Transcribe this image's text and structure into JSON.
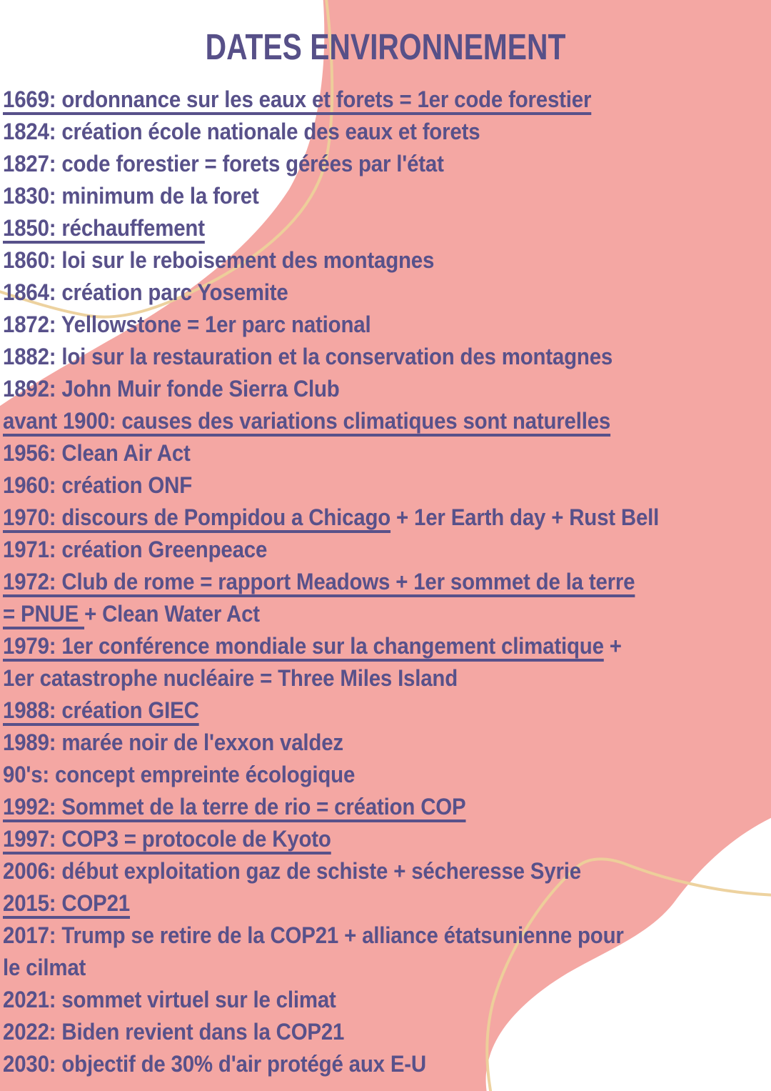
{
  "page": {
    "title": "DATES ENVIRONNEMENT"
  },
  "style": {
    "background_color": "#f4a7a3",
    "text_color": "#58518a",
    "title_color": "#575088",
    "accent_curve_color": "#ecd09a",
    "blob_color": "#ffffff"
  },
  "decor": {
    "top_left_blob": "white-organic-blob",
    "bottom_right_blob": "white-organic-blob",
    "top_left_curve": "gold-curve-line",
    "bottom_right_curve": "gold-curve-line"
  },
  "timeline": {
    "lines": [
      {
        "segments": [
          {
            "t": "1669: ordonnance sur les eaux et forets = 1er code forestier",
            "u": true
          }
        ]
      },
      {
        "segments": [
          {
            "t": "1824: création école nationale des eaux et forets",
            "u": false
          }
        ]
      },
      {
        "segments": [
          {
            "t": "1827: code forestier = forets gérées par l'état",
            "u": false
          }
        ]
      },
      {
        "segments": [
          {
            "t": "1830: minimum de la foret",
            "u": false
          }
        ]
      },
      {
        "segments": [
          {
            "t": "1850: réchauffement",
            "u": true
          }
        ]
      },
      {
        "segments": [
          {
            "t": "1860: loi sur le reboisement des montagnes",
            "u": false
          }
        ]
      },
      {
        "segments": [
          {
            "t": "1864: création parc Yosemite",
            "u": false
          }
        ]
      },
      {
        "segments": [
          {
            "t": "1872: Yellowstone = 1er parc national",
            "u": false
          }
        ]
      },
      {
        "segments": [
          {
            "t": "1882: loi sur la restauration et la conservation des montagnes",
            "u": false
          }
        ]
      },
      {
        "segments": [
          {
            "t": "1892: John Muir fonde Sierra Club",
            "u": false
          }
        ]
      },
      {
        "segments": [
          {
            "t": "avant 1900: causes des variations climatiques sont naturelles",
            "u": true
          }
        ]
      },
      {
        "segments": [
          {
            "t": "1956: Clean Air Act",
            "u": false
          }
        ]
      },
      {
        "segments": [
          {
            "t": "1960: création ONF",
            "u": false
          }
        ]
      },
      {
        "segments": [
          {
            "t": "1970: discours de Pompidou a Chicago",
            "u": true
          },
          {
            "t": " + 1er Earth day + Rust Bell",
            "u": false
          }
        ]
      },
      {
        "segments": [
          {
            "t": "1971: création Greenpeace",
            "u": false
          }
        ]
      },
      {
        "segments": [
          {
            "t": "1972: Club de rome = rapport Meadows + 1er sommet de la terre",
            "u": true
          }
        ]
      },
      {
        "segments": [
          {
            "t": "= PNUE ",
            "u": true
          },
          {
            "t": "+ Clean Water Act",
            "u": false
          }
        ]
      },
      {
        "segments": [
          {
            "t": "1979: 1er conférence mondiale sur la changement climatique",
            "u": true
          },
          {
            "t": " +",
            "u": false
          }
        ]
      },
      {
        "segments": [
          {
            "t": "1er catastrophe nucléaire = Three Miles Island",
            "u": false
          }
        ]
      },
      {
        "segments": [
          {
            "t": "1988: création GIEC",
            "u": true
          }
        ]
      },
      {
        "segments": [
          {
            "t": "1989: marée noir de l'exxon valdez",
            "u": false
          }
        ]
      },
      {
        "segments": [
          {
            "t": "90's: concept empreinte écologique",
            "u": false
          }
        ]
      },
      {
        "segments": [
          {
            "t": "1992: Sommet de la terre de rio = création COP",
            "u": true
          }
        ]
      },
      {
        "segments": [
          {
            "t": "1997: COP3 = protocole de Kyoto",
            "u": true
          }
        ]
      },
      {
        "segments": [
          {
            "t": "2006: début exploitation gaz de schiste + sécheresse Syrie",
            "u": false
          }
        ]
      },
      {
        "segments": [
          {
            "t": "2015: COP21",
            "u": true
          }
        ]
      },
      {
        "segments": [
          {
            "t": "2017: Trump se retire de la COP21 + alliance étatsunienne pour",
            "u": false
          }
        ]
      },
      {
        "segments": [
          {
            "t": "le cilmat",
            "u": false
          }
        ]
      },
      {
        "segments": [
          {
            "t": "2021: sommet virtuel sur le climat",
            "u": false
          }
        ]
      },
      {
        "segments": [
          {
            "t": "2022: Biden revient dans la COP21",
            "u": false
          }
        ]
      },
      {
        "segments": [
          {
            "t": "2030: objectif de 30% d'air protégé aux E-U",
            "u": false
          }
        ]
      }
    ]
  }
}
